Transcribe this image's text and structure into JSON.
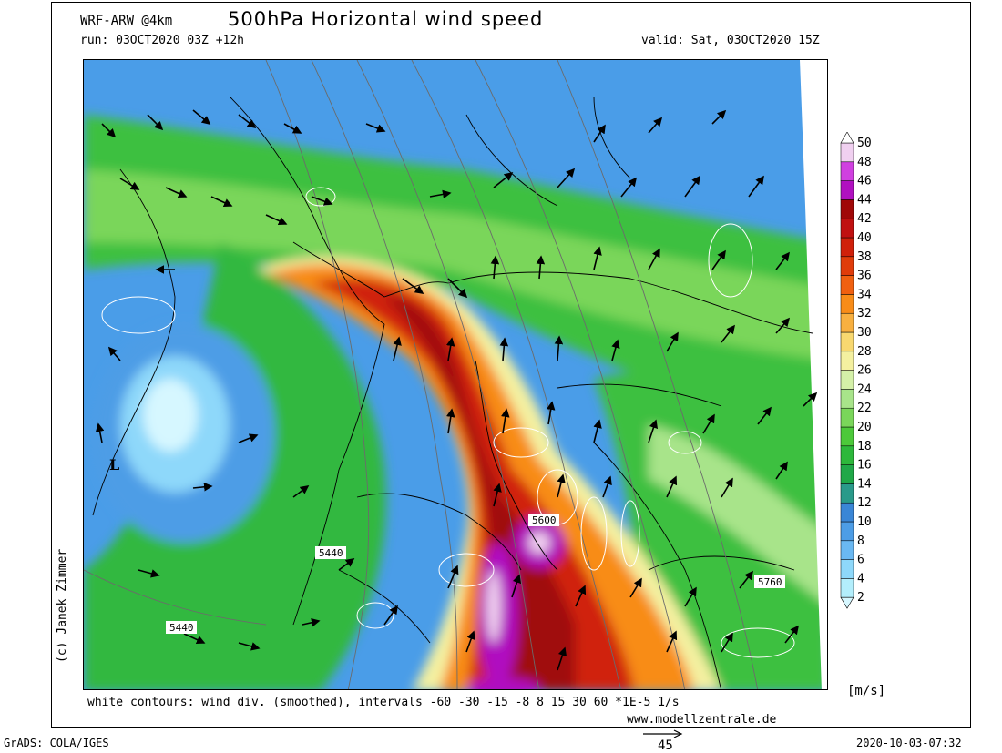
{
  "header": {
    "model": "WRF-ARW @4km",
    "title": "500hPa Horizontal wind speed",
    "run": "run: 03OCT2020 03Z +12h",
    "valid": "valid: Sat, 03OCT2020 15Z"
  },
  "copyright": "(c) Janek Zimmer",
  "footer": {
    "contours_note": "white contours: wind div. (smoothed), intervals -60 -30 -15 -8 8 15 30 60 *1E-5 1/s",
    "website": "www.modellzentrale.de",
    "grads": "GrADS: COLA/IGES",
    "timestamp": "2020-10-03-07:32",
    "reference_vector": "45"
  },
  "map": {
    "low_marker": "L",
    "height_labels": [
      "5600",
      "5440",
      "5760",
      "5440"
    ]
  },
  "colorbar": {
    "unit": "[m/s]",
    "levels": [
      "2",
      "4",
      "6",
      "8",
      "10",
      "12",
      "14",
      "16",
      "18",
      "20",
      "22",
      "24",
      "26",
      "28",
      "30",
      "32",
      "34",
      "36",
      "38",
      "40",
      "42",
      "44",
      "46",
      "48",
      "50"
    ],
    "colors": [
      "#d6f7ff",
      "#b3eefc",
      "#8ed8fa",
      "#6ab8f2",
      "#4d9de6",
      "#3a86d6",
      "#2a9a8a",
      "#20a848",
      "#2db83b",
      "#4cc93a",
      "#7ad65a",
      "#a8e48a",
      "#d4f0a8",
      "#f4f0a0",
      "#f8d870",
      "#f8b040",
      "#f88c18",
      "#f06010",
      "#e03c0a",
      "#d0200a",
      "#c01010",
      "#a00808",
      "#b010c0",
      "#d040e0",
      "#f0d0f0"
    ]
  }
}
